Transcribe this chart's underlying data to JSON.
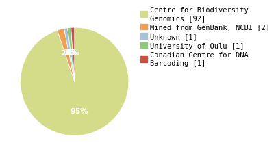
{
  "labels": [
    "Centre for Biodiversity\nGenomics [92]",
    "Mined from GenBank, NCBI [2]",
    "Unknown [1]",
    "University of Oulu [1]",
    "Canadian Centre for DNA\nBarcoding [1]"
  ],
  "values": [
    92,
    2,
    1,
    1,
    1
  ],
  "colors": [
    "#d4dc8a",
    "#f0a050",
    "#a8c0d8",
    "#8cc878",
    "#cc5040"
  ],
  "background_color": "#ffffff",
  "font_size_legend": 7.5,
  "font_size_pct": 8
}
